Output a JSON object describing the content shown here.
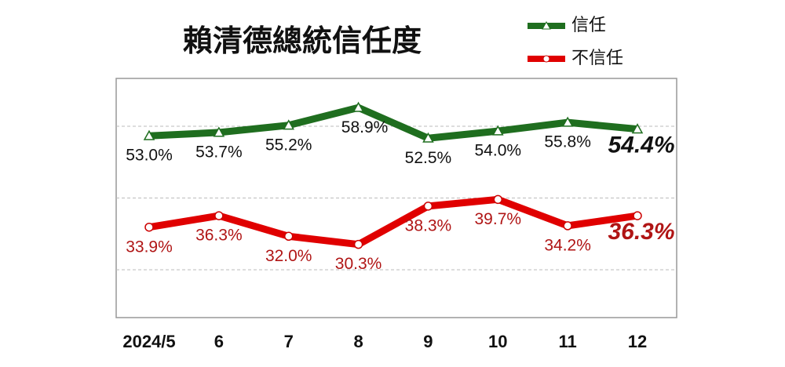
{
  "chart_data": {
    "type": "line",
    "title": "賴清德總統信任度",
    "categories": [
      "2024/5",
      "6",
      "7",
      "8",
      "9",
      "10",
      "11",
      "12"
    ],
    "series": [
      {
        "name": "信任",
        "color": "#1f6e1f",
        "values": [
          53.0,
          53.7,
          55.2,
          58.9,
          52.5,
          54.0,
          55.8,
          54.4
        ],
        "value_labels": [
          "53.0%",
          "53.7%",
          "55.2%",
          "58.9%",
          "52.5%",
          "54.0%",
          "55.8%",
          "54.4%"
        ]
      },
      {
        "name": "不信任",
        "color": "#e00000",
        "values": [
          33.9,
          36.3,
          32.0,
          30.3,
          38.3,
          39.7,
          34.2,
          36.3
        ],
        "value_labels": [
          "33.9%",
          "36.3%",
          "32.0%",
          "30.3%",
          "38.3%",
          "39.7%",
          "34.2%",
          "36.3%"
        ]
      }
    ],
    "ylim": [
      15,
      65
    ],
    "yticks": [
      25,
      40,
      55
    ],
    "grid": true
  }
}
